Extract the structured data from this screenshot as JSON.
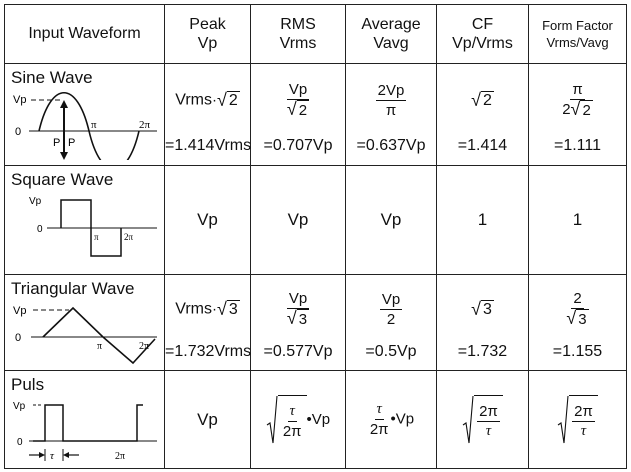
{
  "headers": {
    "c1": "Input Waveform",
    "c2a": "Peak",
    "c2b": "Vp",
    "c3a": "RMS",
    "c3b": "Vrms",
    "c4a": "Average",
    "c4b": "Vavg",
    "c5a": "CF",
    "c5b": "Vp/Vrms",
    "c6a": "Form Factor",
    "c6b": "Vrms/Vavg"
  },
  "sine": {
    "name": "Sine Wave",
    "peak_base": "Vrms",
    "peak_rad": "2",
    "rms_num": "Vp",
    "rms_rad": "2",
    "avg_num": "2Vp",
    "avg_den": "π",
    "cf_rad": "2",
    "ff_num": "π",
    "ff_den_coef": "2",
    "ff_den_rad": "2",
    "peak_val": "=1.414Vrms",
    "rms_val": "=0.707Vp",
    "avg_val": "=0.637Vp",
    "cf_val": "=1.414",
    "ff_val": "=1.111",
    "labels": {
      "vp": "Vp",
      "zero": "0",
      "pi": "π",
      "twopi": "2π",
      "p": "P"
    }
  },
  "square": {
    "name": "Square Wave",
    "peak": "Vp",
    "rms": "Vp",
    "avg": "Vp",
    "cf": "1",
    "ff": "1",
    "labels": {
      "vp": "Vp",
      "zero": "0",
      "pi": "π",
      "twopi": "2π"
    }
  },
  "triangular": {
    "name": "Triangular Wave",
    "peak_base": "Vrms",
    "peak_rad": "3",
    "rms_num": "Vp",
    "rms_rad": "3",
    "avg_num": "Vp",
    "avg_den": "2",
    "cf_rad": "3",
    "ff_num": "2",
    "ff_rad": "3",
    "peak_val": "=1.732Vrms",
    "rms_val": "=0.577Vp",
    "avg_val": "=0.5Vp",
    "cf_val": "=1.732",
    "ff_val": "=1.155",
    "labels": {
      "vp": "Vp",
      "zero": "0",
      "pi": "π",
      "twopi": "2π"
    }
  },
  "pulse": {
    "name": "Puls",
    "peak": "Vp",
    "rms_num": "τ",
    "rms_den": "2π",
    "rms_tail": "•Vp",
    "avg_num": "τ",
    "avg_den": "2π",
    "avg_tail": "•Vp",
    "cf_num": "2π",
    "cf_den": "τ",
    "ff_num": "2π",
    "ff_den": "τ",
    "labels": {
      "vp": "Vp",
      "zero": "0",
      "tau": "τ",
      "twopi": "2π"
    }
  }
}
